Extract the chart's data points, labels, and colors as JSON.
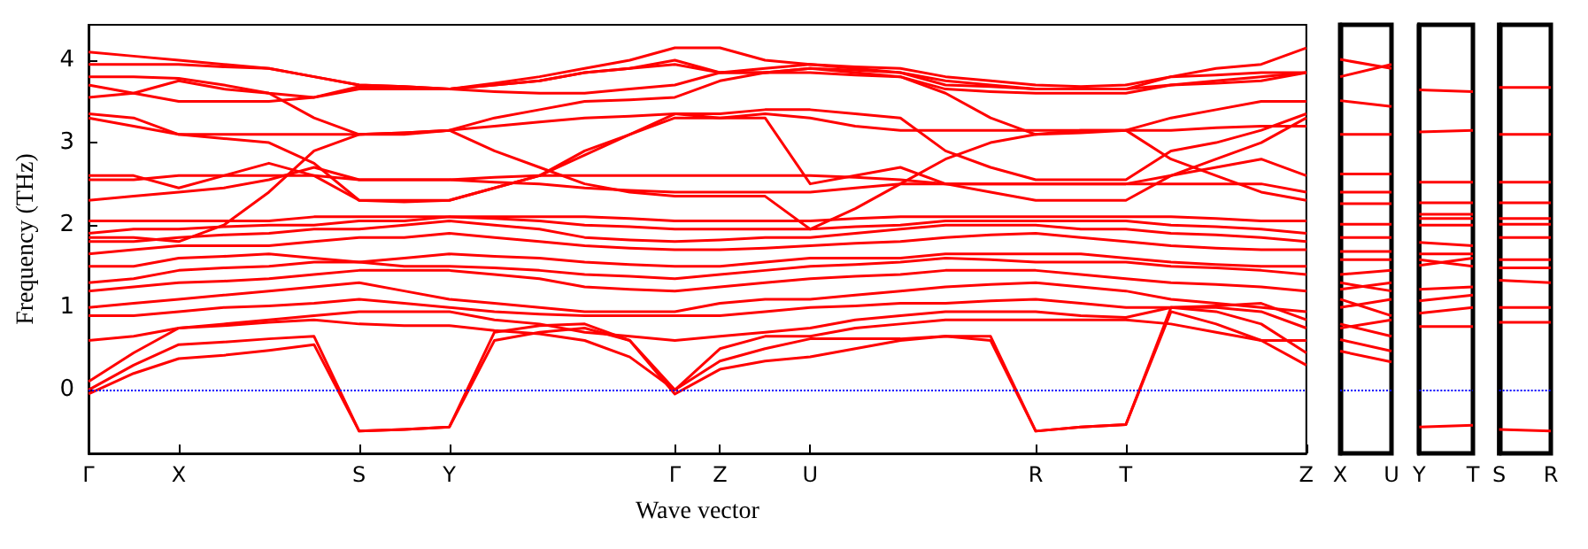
{
  "chart_data": [
    {
      "type": "line",
      "ylabel": "Frequency (THz)",
      "xlabel": "Wave vector",
      "ylim": [
        -0.77,
        4.43
      ],
      "yticks": [
        0,
        1,
        2,
        3,
        4
      ],
      "categories": [
        "Γ",
        null,
        "X",
        null,
        null,
        null,
        "S",
        null,
        "Y",
        null,
        null,
        null,
        null,
        "Γ",
        "Z",
        null,
        "U",
        null,
        null,
        null,
        null,
        "R",
        null,
        "T",
        null,
        null,
        null,
        "Z"
      ],
      "grid": false,
      "marker": "none",
      "line_style": "solid",
      "ref_lines": [
        {
          "axis": "y",
          "value": 0,
          "color": "#0000ff",
          "line_style": "dotted"
        }
      ],
      "series": [
        {
          "color": "#ff0000",
          "values": [
            -0.05,
            0.2,
            0.38,
            0.42,
            0.48,
            0.55,
            -0.5,
            -0.48,
            -0.45,
            0.6,
            0.7,
            0.75,
            0.6,
            -0.05,
            0.25,
            0.35,
            0.4,
            0.5,
            0.6,
            0.65,
            0.6,
            -0.5,
            -0.45,
            -0.42,
            0.95,
            0.8,
            0.6,
            0.3
          ]
        },
        {
          "color": "#ff0000",
          "values": [
            0,
            0.3,
            0.55,
            0.58,
            0.62,
            0.65,
            -0.5,
            -0.48,
            -0.45,
            0.7,
            0.78,
            0.8,
            0.6,
            0,
            0.35,
            0.5,
            0.62,
            0.62,
            0.62,
            0.65,
            0.65,
            -0.5,
            -0.45,
            -0.42,
            1.0,
            0.95,
            0.8,
            0.45
          ]
        },
        {
          "color": "#ff0000",
          "values": [
            0.1,
            0.45,
            0.75,
            0.78,
            0.82,
            0.85,
            0.8,
            0.78,
            0.78,
            0.72,
            0.68,
            0.6,
            0.4,
            0,
            0.5,
            0.65,
            0.65,
            0.75,
            0.8,
            0.85,
            0.85,
            0.85,
            0.85,
            0.85,
            0.8,
            0.7,
            0.6,
            0.6
          ]
        },
        {
          "color": "#ff0000",
          "values": [
            0.6,
            0.65,
            0.75,
            0.8,
            0.85,
            0.9,
            0.95,
            0.95,
            0.95,
            0.85,
            0.8,
            0.7,
            0.65,
            0.6,
            0.65,
            0.7,
            0.75,
            0.85,
            0.9,
            0.95,
            0.95,
            0.95,
            0.9,
            0.88,
            1.0,
            1.0,
            0.95,
            0.75
          ]
        },
        {
          "color": "#ff0000",
          "values": [
            0.9,
            0.9,
            0.95,
            1.0,
            1.02,
            1.05,
            1.1,
            1.05,
            1.0,
            0.95,
            0.92,
            0.9,
            0.9,
            0.9,
            0.9,
            0.95,
            1.0,
            1.02,
            1.05,
            1.05,
            1.08,
            1.1,
            1.05,
            1.0,
            1.0,
            1.02,
            1.05,
            0.85
          ]
        },
        {
          "color": "#ff0000",
          "values": [
            1.0,
            1.05,
            1.1,
            1.15,
            1.2,
            1.25,
            1.3,
            1.2,
            1.1,
            1.05,
            1.0,
            0.95,
            0.95,
            0.95,
            1.05,
            1.1,
            1.1,
            1.15,
            1.2,
            1.25,
            1.28,
            1.3,
            1.25,
            1.2,
            1.1,
            1.05,
            1.0,
            0.95
          ]
        },
        {
          "color": "#ff0000",
          "values": [
            1.2,
            1.25,
            1.3,
            1.32,
            1.35,
            1.4,
            1.45,
            1.45,
            1.45,
            1.4,
            1.35,
            1.25,
            1.22,
            1.2,
            1.25,
            1.3,
            1.35,
            1.38,
            1.4,
            1.45,
            1.45,
            1.45,
            1.4,
            1.35,
            1.3,
            1.28,
            1.25,
            1.2
          ]
        },
        {
          "color": "#ff0000",
          "values": [
            1.3,
            1.35,
            1.45,
            1.48,
            1.5,
            1.55,
            1.55,
            1.5,
            1.5,
            1.48,
            1.45,
            1.4,
            1.38,
            1.35,
            1.4,
            1.45,
            1.5,
            1.52,
            1.55,
            1.6,
            1.58,
            1.55,
            1.55,
            1.55,
            1.5,
            1.48,
            1.45,
            1.4
          ]
        },
        {
          "color": "#ff0000",
          "values": [
            1.5,
            1.5,
            1.6,
            1.62,
            1.65,
            1.6,
            1.55,
            1.6,
            1.65,
            1.62,
            1.6,
            1.55,
            1.52,
            1.5,
            1.5,
            1.55,
            1.6,
            1.6,
            1.6,
            1.65,
            1.65,
            1.65,
            1.65,
            1.6,
            1.55,
            1.52,
            1.5,
            1.5
          ]
        },
        {
          "color": "#ff0000",
          "values": [
            1.65,
            1.7,
            1.75,
            1.75,
            1.75,
            1.8,
            1.85,
            1.85,
            1.9,
            1.85,
            1.8,
            1.75,
            1.72,
            1.7,
            1.7,
            1.72,
            1.75,
            1.78,
            1.8,
            1.85,
            1.88,
            1.9,
            1.85,
            1.8,
            1.75,
            1.72,
            1.7,
            1.7
          ]
        },
        {
          "color": "#ff0000",
          "values": [
            1.8,
            1.8,
            1.85,
            1.88,
            1.9,
            1.95,
            1.95,
            2.0,
            2.05,
            2.0,
            1.95,
            1.85,
            1.82,
            1.8,
            1.82,
            1.85,
            1.85,
            1.9,
            1.95,
            2.0,
            2.0,
            2.0,
            1.95,
            1.95,
            1.9,
            1.88,
            1.85,
            1.8
          ]
        },
        {
          "color": "#ff0000",
          "values": [
            1.9,
            1.95,
            1.95,
            1.98,
            2.0,
            2.0,
            2.05,
            2.05,
            2.1,
            2.08,
            2.05,
            2.0,
            1.98,
            1.95,
            1.95,
            1.95,
            1.95,
            1.98,
            2.0,
            2.05,
            2.05,
            2.05,
            2.05,
            2.05,
            2.0,
            1.98,
            1.95,
            1.9
          ]
        },
        {
          "color": "#ff0000",
          "values": [
            2.05,
            2.05,
            2.05,
            2.05,
            2.05,
            2.1,
            2.1,
            2.1,
            2.1,
            2.1,
            2.1,
            2.1,
            2.08,
            2.05,
            2.05,
            2.05,
            2.05,
            2.08,
            2.1,
            2.1,
            2.1,
            2.1,
            2.1,
            2.1,
            2.1,
            2.08,
            2.05,
            2.05
          ]
        },
        {
          "color": "#ff0000",
          "values": [
            1.85,
            1.85,
            1.8,
            2.0,
            2.4,
            2.9,
            3.1,
            3.1,
            3.15,
            2.9,
            2.7,
            2.5,
            2.4,
            2.35,
            2.35,
            2.35,
            1.95,
            2.2,
            2.5,
            2.8,
            3.0,
            3.1,
            3.15,
            3.15,
            2.8,
            2.6,
            2.4,
            2.3
          ]
        },
        {
          "color": "#ff0000",
          "values": [
            2.3,
            2.35,
            2.4,
            2.45,
            2.55,
            2.7,
            2.55,
            2.55,
            2.55,
            2.52,
            2.5,
            2.45,
            2.42,
            2.4,
            2.4,
            2.4,
            2.4,
            2.45,
            2.5,
            2.5,
            2.5,
            2.5,
            2.5,
            2.5,
            2.5,
            2.5,
            2.5,
            2.4
          ]
        },
        {
          "color": "#ff0000",
          "values": [
            2.55,
            2.55,
            2.6,
            2.6,
            2.6,
            2.6,
            2.55,
            2.55,
            2.55,
            2.58,
            2.6,
            2.6,
            2.6,
            2.6,
            2.6,
            2.6,
            2.6,
            2.58,
            2.55,
            2.5,
            2.5,
            2.5,
            2.5,
            2.5,
            2.6,
            2.7,
            2.8,
            2.6
          ]
        },
        {
          "color": "#ff0000",
          "values": [
            2.6,
            2.6,
            2.45,
            2.6,
            2.75,
            2.6,
            2.3,
            2.28,
            2.3,
            2.45,
            2.6,
            2.9,
            3.1,
            3.3,
            3.3,
            3.3,
            2.5,
            2.6,
            2.7,
            2.5,
            2.4,
            2.3,
            2.3,
            2.3,
            2.6,
            2.8,
            3.0,
            3.3
          ]
        },
        {
          "color": "#ff0000",
          "values": [
            3.3,
            3.2,
            3.1,
            3.05,
            3.0,
            2.75,
            2.3,
            2.3,
            2.3,
            2.45,
            2.6,
            2.85,
            3.1,
            3.35,
            3.35,
            3.4,
            3.4,
            3.35,
            3.3,
            2.9,
            2.7,
            2.55,
            2.55,
            2.55,
            2.9,
            3.0,
            3.15,
            3.35
          ]
        },
        {
          "color": "#ff0000",
          "values": [
            3.35,
            3.3,
            3.1,
            3.1,
            3.1,
            3.1,
            3.1,
            3.12,
            3.15,
            3.2,
            3.25,
            3.3,
            3.32,
            3.35,
            3.3,
            3.35,
            3.3,
            3.2,
            3.15,
            3.15,
            3.15,
            3.15,
            3.15,
            3.15,
            3.15,
            3.18,
            3.2,
            3.2
          ]
        },
        {
          "color": "#ff0000",
          "values": [
            3.55,
            3.6,
            3.75,
            3.65,
            3.6,
            3.3,
            3.1,
            3.12,
            3.15,
            3.3,
            3.4,
            3.5,
            3.52,
            3.55,
            3.75,
            3.85,
            3.85,
            3.82,
            3.8,
            3.6,
            3.3,
            3.1,
            3.12,
            3.15,
            3.3,
            3.4,
            3.5,
            3.5
          ]
        },
        {
          "color": "#ff0000",
          "values": [
            3.7,
            3.6,
            3.5,
            3.5,
            3.5,
            3.55,
            3.65,
            3.65,
            3.65,
            3.7,
            3.75,
            3.85,
            3.9,
            3.95,
            3.85,
            3.85,
            3.9,
            3.85,
            3.8,
            3.65,
            3.62,
            3.6,
            3.6,
            3.6,
            3.7,
            3.75,
            3.8,
            3.85
          ]
        },
        {
          "color": "#ff0000",
          "values": [
            3.8,
            3.8,
            3.78,
            3.7,
            3.6,
            3.55,
            3.68,
            3.66,
            3.65,
            3.62,
            3.6,
            3.6,
            3.65,
            3.7,
            3.85,
            3.85,
            3.9,
            3.88,
            3.85,
            3.7,
            3.68,
            3.65,
            3.65,
            3.65,
            3.7,
            3.72,
            3.75,
            3.85
          ]
        },
        {
          "color": "#ff0000",
          "values": [
            4.1,
            4.05,
            4.0,
            3.95,
            3.9,
            3.8,
            3.7,
            3.68,
            3.65,
            3.72,
            3.8,
            3.9,
            4.0,
            4.15,
            4.15,
            4.0,
            3.95,
            3.9,
            3.85,
            3.75,
            3.7,
            3.65,
            3.65,
            3.65,
            3.8,
            3.9,
            3.95,
            4.15
          ]
        },
        {
          "color": "#ff0000",
          "values": [
            3.95,
            3.95,
            3.95,
            3.92,
            3.9,
            3.8,
            3.7,
            3.68,
            3.65,
            3.7,
            3.75,
            3.85,
            3.9,
            4.0,
            3.85,
            3.9,
            3.95,
            3.92,
            3.9,
            3.8,
            3.75,
            3.7,
            3.68,
            3.7,
            3.8,
            3.82,
            3.85,
            3.85
          ]
        }
      ]
    },
    {
      "type": "line",
      "ylim": [
        -0.77,
        4.43
      ],
      "categories": [
        "X",
        "U"
      ],
      "tick_labels": "x",
      "marker": "none",
      "line_style": "solid",
      "ref_lines": [
        {
          "axis": "y",
          "value": 0,
          "color": "#0000ff",
          "line_style": "dotted"
        }
      ],
      "series": [
        {
          "color": "#ff0000",
          "values": [
            4.01,
            3.9
          ]
        },
        {
          "color": "#ff0000",
          "values": [
            3.8,
            3.95
          ]
        },
        {
          "color": "#ff0000",
          "values": [
            3.51,
            3.44
          ]
        },
        {
          "color": "#ff0000",
          "values": [
            3.1,
            3.1
          ]
        },
        {
          "color": "#ff0000",
          "values": [
            2.62,
            2.62
          ]
        },
        {
          "color": "#ff0000",
          "values": [
            2.4,
            2.4
          ]
        },
        {
          "color": "#ff0000",
          "values": [
            2.26,
            2.26
          ]
        },
        {
          "color": "#ff0000",
          "values": [
            2.01,
            2.01
          ]
        },
        {
          "color": "#ff0000",
          "values": [
            1.85,
            1.85
          ]
        },
        {
          "color": "#ff0000",
          "values": [
            1.68,
            1.68
          ]
        },
        {
          "color": "#ff0000",
          "values": [
            1.58,
            1.58
          ]
        },
        {
          "color": "#ff0000",
          "values": [
            1.4,
            1.45
          ]
        },
        {
          "color": "#ff0000",
          "values": [
            1.22,
            1.3
          ]
        },
        {
          "color": "#ff0000",
          "values": [
            1.3,
            1.2
          ]
        },
        {
          "color": "#ff0000",
          "values": [
            1.0,
            1.1
          ]
        },
        {
          "color": "#ff0000",
          "values": [
            1.1,
            0.9
          ]
        },
        {
          "color": "#ff0000",
          "values": [
            0.75,
            0.85
          ]
        },
        {
          "color": "#ff0000",
          "values": [
            0.8,
            0.65
          ]
        },
        {
          "color": "#ff0000",
          "values": [
            0.61,
            0.47
          ]
        },
        {
          "color": "#ff0000",
          "values": [
            0.47,
            0.34
          ]
        }
      ]
    },
    {
      "type": "line",
      "ylim": [
        -0.77,
        4.43
      ],
      "categories": [
        "Y",
        "T"
      ],
      "tick_labels": "x",
      "marker": "none",
      "line_style": "solid",
      "ref_lines": [
        {
          "axis": "y",
          "value": 0,
          "color": "#0000ff",
          "line_style": "dotted"
        }
      ],
      "series": [
        {
          "color": "#ff0000",
          "values": [
            3.64,
            3.62
          ]
        },
        {
          "color": "#ff0000",
          "values": [
            3.13,
            3.15
          ]
        },
        {
          "color": "#ff0000",
          "values": [
            2.52,
            2.52
          ]
        },
        {
          "color": "#ff0000",
          "values": [
            2.27,
            2.27
          ]
        },
        {
          "color": "#ff0000",
          "values": [
            2.13,
            2.13
          ]
        },
        {
          "color": "#ff0000",
          "values": [
            2.08,
            2.08
          ]
        },
        {
          "color": "#ff0000",
          "values": [
            2.0,
            2.0
          ]
        },
        {
          "color": "#ff0000",
          "values": [
            1.79,
            1.75
          ]
        },
        {
          "color": "#ff0000",
          "values": [
            1.65,
            1.65
          ]
        },
        {
          "color": "#ff0000",
          "values": [
            1.58,
            1.5
          ]
        },
        {
          "color": "#ff0000",
          "values": [
            1.51,
            1.6
          ]
        },
        {
          "color": "#ff0000",
          "values": [
            1.22,
            1.25
          ]
        },
        {
          "color": "#ff0000",
          "values": [
            1.08,
            1.15
          ]
        },
        {
          "color": "#ff0000",
          "values": [
            0.93,
            1.0
          ]
        },
        {
          "color": "#ff0000",
          "values": [
            0.77,
            0.77
          ]
        },
        {
          "color": "#ff0000",
          "values": [
            -0.45,
            -0.43
          ]
        }
      ]
    },
    {
      "type": "line",
      "ylim": [
        -0.77,
        4.43
      ],
      "categories": [
        "S",
        "R"
      ],
      "tick_labels": "x",
      "marker": "none",
      "line_style": "solid",
      "ref_lines": [
        {
          "axis": "y",
          "value": 0,
          "color": "#0000ff",
          "line_style": "dotted"
        }
      ],
      "series": [
        {
          "color": "#ff0000",
          "values": [
            3.67,
            3.67
          ]
        },
        {
          "color": "#ff0000",
          "values": [
            3.1,
            3.1
          ]
        },
        {
          "color": "#ff0000",
          "values": [
            2.52,
            2.52
          ]
        },
        {
          "color": "#ff0000",
          "values": [
            2.27,
            2.27
          ]
        },
        {
          "color": "#ff0000",
          "values": [
            2.08,
            2.08
          ]
        },
        {
          "color": "#ff0000",
          "values": [
            2.01,
            2.01
          ]
        },
        {
          "color": "#ff0000",
          "values": [
            1.85,
            1.85
          ]
        },
        {
          "color": "#ff0000",
          "values": [
            1.58,
            1.58
          ]
        },
        {
          "color": "#ff0000",
          "values": [
            1.48,
            1.48
          ]
        },
        {
          "color": "#ff0000",
          "values": [
            1.33,
            1.3
          ]
        },
        {
          "color": "#ff0000",
          "values": [
            1.0,
            1.0
          ]
        },
        {
          "color": "#ff0000",
          "values": [
            0.82,
            0.82
          ]
        },
        {
          "color": "#ff0000",
          "values": [
            -0.48,
            -0.5
          ]
        }
      ]
    }
  ]
}
